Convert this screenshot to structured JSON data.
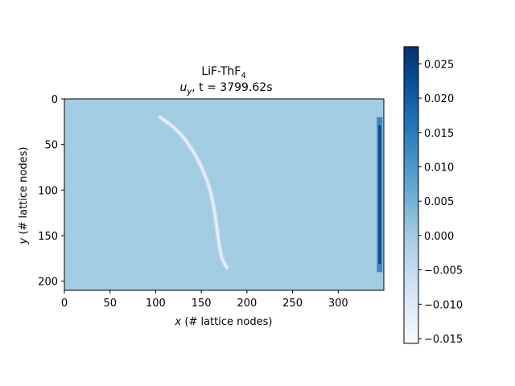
{
  "chart_data": {
    "type": "heatmap",
    "title_line1": "LiF-ThF",
    "title_line1_sub": "4",
    "title_line2_var": "u",
    "title_line2_var_sub": "y",
    "title_line2_rest": ", t = 3799.62s",
    "xlabel_var": "x",
    "xlabel_text": " (# lattice nodes)",
    "ylabel_var": "y",
    "ylabel_text": " (# lattice nodes)",
    "xlim": [
      0,
      350
    ],
    "ylim": [
      210,
      0
    ],
    "x_ticks": [
      0,
      50,
      100,
      150,
      200,
      250,
      300
    ],
    "y_ticks": [
      0,
      50,
      100,
      150,
      200
    ],
    "x_tick_labels": [
      "0",
      "50",
      "100",
      "150",
      "200",
      "250",
      "300"
    ],
    "y_tick_labels": [
      "0",
      "50",
      "100",
      "150",
      "200"
    ],
    "colorbar": {
      "colormap": "Blues",
      "range": [
        -0.0157,
        0.0275
      ],
      "ticks": [
        -0.015,
        -0.01,
        -0.005,
        0.0,
        0.005,
        0.01,
        0.015,
        0.02,
        0.025
      ],
      "tick_labels": [
        "−0.015",
        "−0.010",
        "−0.005",
        "0.000",
        "0.005",
        "0.010",
        "0.015",
        "0.020",
        "0.025"
      ]
    },
    "background_value": 0.0,
    "features": [
      {
        "name": "curved-low-band",
        "value_min": -0.012,
        "path": [
          [
            105,
            20
          ],
          [
            125,
            35
          ],
          [
            140,
            55
          ],
          [
            152,
            78
          ],
          [
            160,
            100
          ],
          [
            165,
            125
          ],
          [
            168,
            150
          ],
          [
            172,
            175
          ],
          [
            178,
            185
          ]
        ]
      },
      {
        "name": "right-edge-high-band",
        "value_max": 0.025,
        "x": 345,
        "y_range": [
          20,
          190
        ]
      }
    ]
  }
}
